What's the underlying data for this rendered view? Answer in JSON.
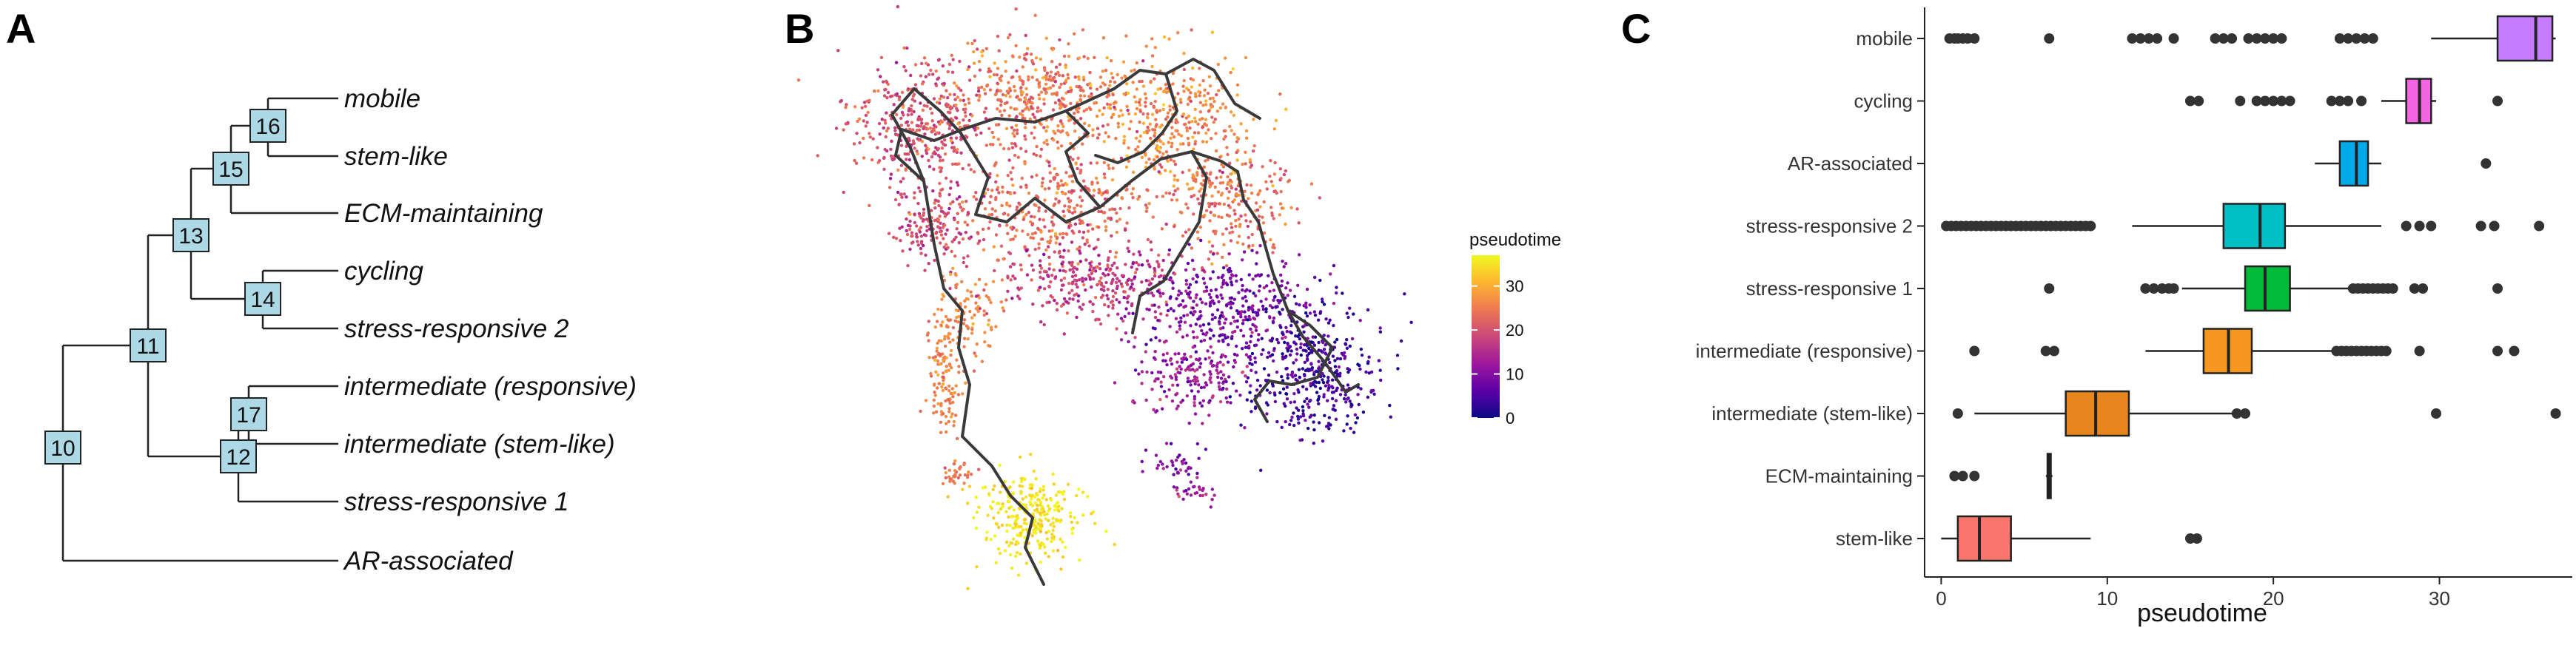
{
  "panels": {
    "a": "A",
    "b": "B",
    "c": "C"
  },
  "colors": {
    "node_fill": "#add8e6",
    "box_colors": {
      "mobile": "#C77CFF",
      "cycling": "#F564E3",
      "AR-associated": "#00A9E8",
      "stress-responsive 2": "#00BFC4",
      "stress-responsive 1": "#00BA38",
      "intermediate (responsive)": "#F59720",
      "intermediate (stem-like)": "#E6861C",
      "ECM-maintaining": "#D39200",
      "stem-like": "#F8766D"
    },
    "pseudotime_scale": [
      "#0d0887",
      "#5c01a6",
      "#9c179e",
      "#cc4778",
      "#ed7953",
      "#fdb42f",
      "#f0f921"
    ]
  },
  "chart_data": [
    {
      "type": "tree",
      "leaves": [
        "mobile",
        "stem-like",
        "ECM-maintaining",
        "cycling",
        "stress-responsive 2",
        "intermediate (responsive)",
        "intermediate (stem-like)",
        "stress-responsive 1",
        "AR-associated"
      ],
      "nodes": [
        "10",
        "11",
        "12",
        "13",
        "14",
        "15",
        "16",
        "17"
      ],
      "edges": [
        [
          "10",
          "11"
        ],
        [
          "10",
          "AR-associated"
        ],
        [
          "11",
          "13"
        ],
        [
          "11",
          "12"
        ],
        [
          "13",
          "15"
        ],
        [
          "13",
          "14"
        ],
        [
          "15",
          "16"
        ],
        [
          "15",
          "ECM-maintaining"
        ],
        [
          "16",
          "mobile"
        ],
        [
          "16",
          "stem-like"
        ],
        [
          "14",
          "cycling"
        ],
        [
          "14",
          "stress-responsive 2"
        ],
        [
          "12",
          "17"
        ],
        [
          "12",
          "stress-responsive 1"
        ],
        [
          "17",
          "intermediate (responsive)"
        ],
        [
          "17",
          "intermediate (stem-like)"
        ]
      ]
    },
    {
      "type": "scatter",
      "color_legend": {
        "title": "pseudotime",
        "ticks": [
          "30",
          "20",
          "10",
          "0"
        ],
        "range": [
          0,
          37
        ]
      }
    },
    {
      "type": "box",
      "categories": [
        "mobile",
        "cycling",
        "AR-associated",
        "stress-responsive 2",
        "stress-responsive 1",
        "intermediate (responsive)",
        "intermediate (stem-like)",
        "ECM-maintaining",
        "stem-like"
      ],
      "xlabel": "pseudotime",
      "xlim": [
        -1,
        38
      ],
      "xticks": [
        "0",
        "10",
        "20",
        "30"
      ],
      "boxes": [
        {
          "name": "mobile",
          "whisker_low": 29.5,
          "q1": 33.5,
          "median": 35.8,
          "q3": 36.8,
          "whisker_high": 37.0,
          "outliers": [
            0.5,
            0.8,
            1.0,
            1.3,
            1.6,
            2.0,
            6.5,
            11.5,
            12.0,
            12.5,
            13.0,
            14.0,
            16.5,
            17.0,
            17.5,
            18.5,
            19.0,
            19.5,
            20.0,
            20.5,
            24.0,
            24.5,
            25.0,
            25.5,
            26.0
          ]
        },
        {
          "name": "cycling",
          "whisker_low": 26.5,
          "q1": 28.0,
          "median": 28.8,
          "q3": 29.5,
          "whisker_high": 29.8,
          "outliers": [
            15.0,
            15.5,
            18.0,
            19.0,
            19.5,
            20.0,
            20.5,
            21.0,
            23.5,
            24.0,
            24.5,
            25.3,
            33.5
          ]
        },
        {
          "name": "AR-associated",
          "whisker_low": 22.5,
          "q1": 24.0,
          "median": 25.0,
          "q3": 25.7,
          "whisker_high": 26.5,
          "outliers": [
            32.8
          ]
        },
        {
          "name": "stress-responsive 2",
          "whisker_low": 11.5,
          "q1": 17.0,
          "median": 19.2,
          "q3": 20.7,
          "whisker_high": 26.5,
          "outliers": [
            0.3,
            0.6,
            0.9,
            1.2,
            1.5,
            1.8,
            2.1,
            2.4,
            2.7,
            3.0,
            3.3,
            3.6,
            3.9,
            4.2,
            4.5,
            4.8,
            5.1,
            5.4,
            5.7,
            6.0,
            6.3,
            6.6,
            6.9,
            7.2,
            7.5,
            7.8,
            8.1,
            8.4,
            8.7,
            9.0,
            28.0,
            28.8,
            29.5,
            32.5,
            33.3,
            36.0
          ]
        },
        {
          "name": "stress-responsive 1",
          "whisker_low": 14.5,
          "q1": 18.3,
          "median": 19.5,
          "q3": 21.0,
          "whisker_high": 24.5,
          "outliers": [
            6.5,
            12.3,
            12.8,
            13.3,
            13.7,
            14.0,
            24.8,
            25.1,
            25.4,
            25.7,
            26.0,
            26.3,
            26.6,
            26.9,
            27.2,
            28.5,
            29.0,
            33.5
          ]
        },
        {
          "name": "intermediate (responsive)",
          "whisker_low": 12.3,
          "q1": 15.8,
          "median": 17.3,
          "q3": 18.7,
          "whisker_high": 23.5,
          "outliers": [
            2.0,
            6.3,
            6.8,
            23.8,
            24.1,
            24.4,
            24.7,
            25.0,
            25.3,
            25.6,
            25.9,
            26.2,
            26.5,
            26.8,
            28.8,
            33.5,
            34.5
          ]
        },
        {
          "name": "intermediate (stem-like)",
          "whisker_low": 2.0,
          "q1": 7.5,
          "median": 9.3,
          "q3": 11.3,
          "whisker_high": 17.5,
          "outliers": [
            1.0,
            17.8,
            18.3,
            29.8,
            37.0
          ]
        },
        {
          "name": "ECM-maintaining",
          "whisker_low": 6.3,
          "q1": 6.4,
          "median": 6.5,
          "q3": 6.6,
          "whisker_high": 6.7,
          "outliers": [
            0.8,
            1.3,
            2.0
          ]
        },
        {
          "name": "stem-like",
          "whisker_low": 0.0,
          "q1": 1.0,
          "median": 2.3,
          "q3": 4.2,
          "whisker_high": 9.0,
          "outliers": [
            15.0,
            15.4
          ]
        }
      ]
    }
  ]
}
